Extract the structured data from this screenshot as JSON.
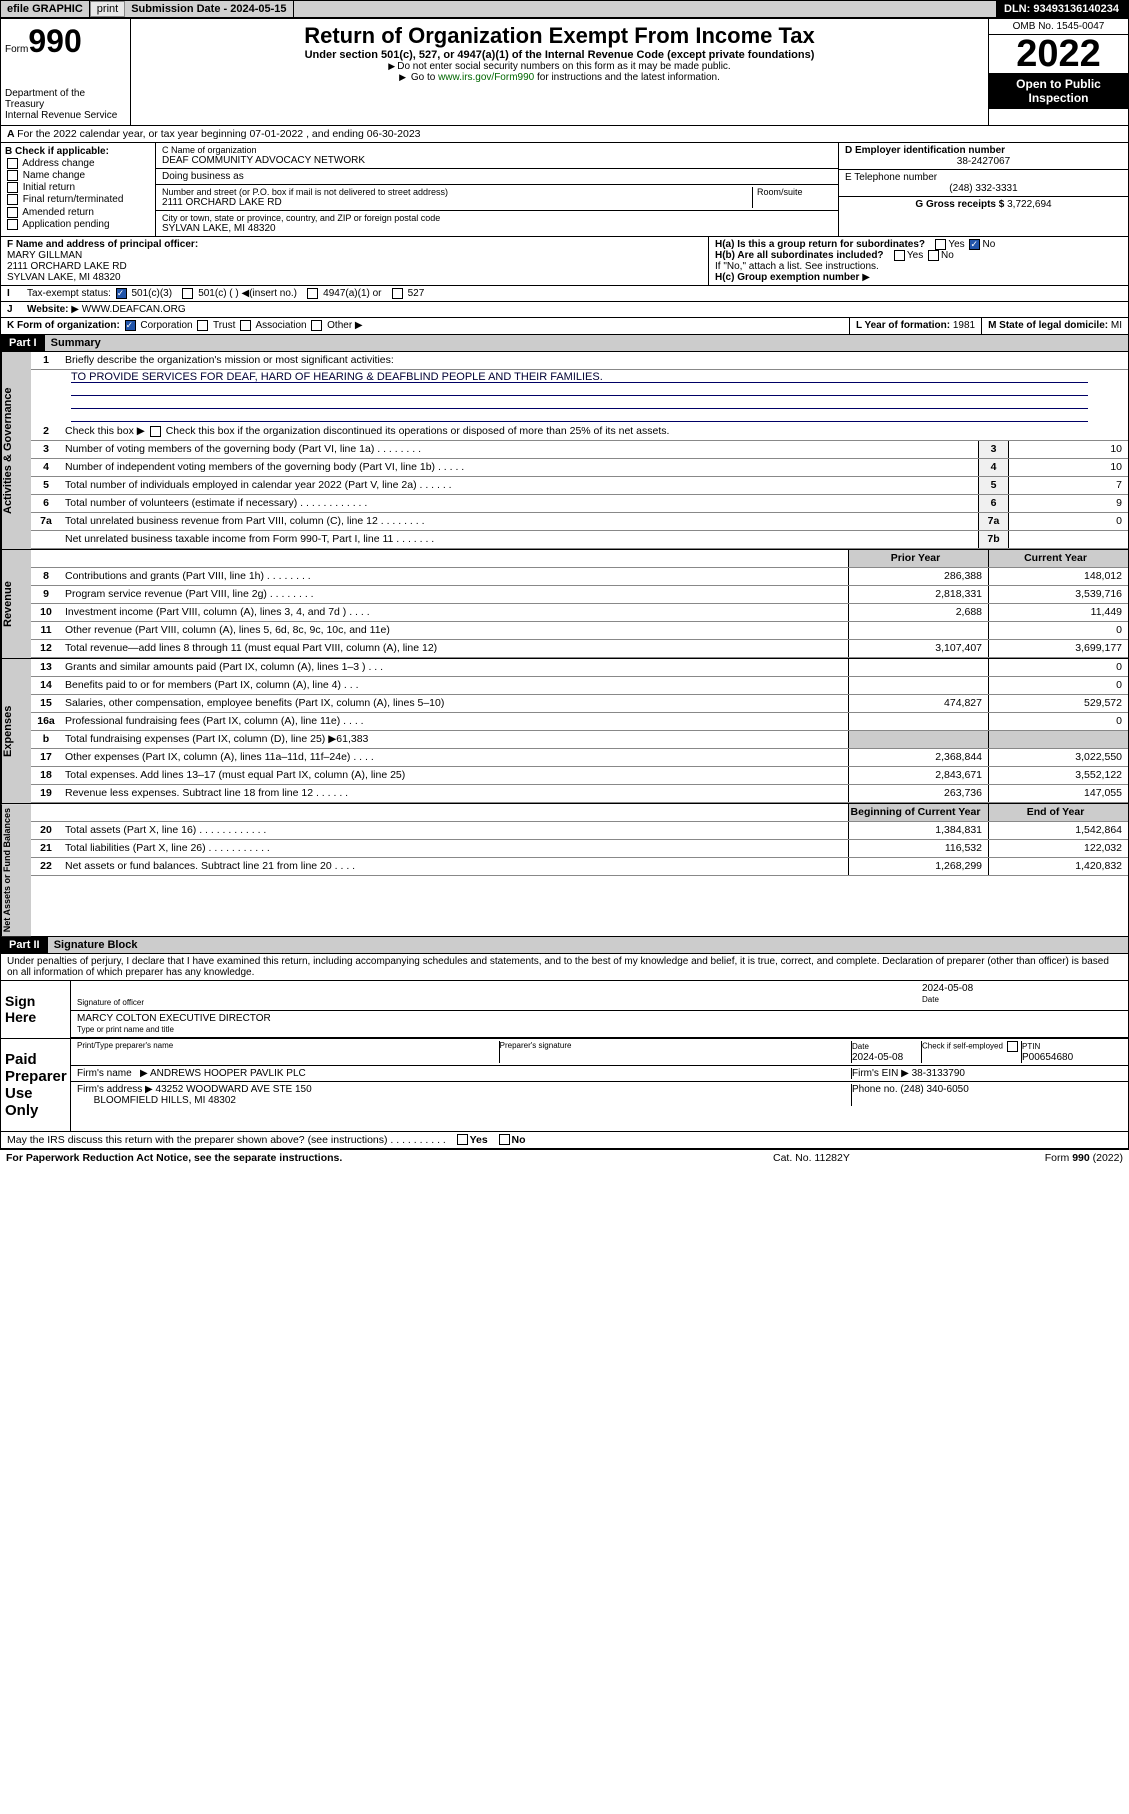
{
  "topbar": {
    "efile": "efile GRAPHIC",
    "print": "print",
    "sub_label": "Submission Date - ",
    "sub_date": "2024-05-15",
    "dln": "DLN: 93493136140234"
  },
  "header": {
    "form_label": "Form",
    "form_num": "990",
    "dept": "Department of the Treasury",
    "irs": "Internal Revenue Service",
    "title": "Return of Organization Exempt From Income Tax",
    "sub1": "Under section 501(c), 527, or 4947(a)(1) of the Internal Revenue Code (except private foundations)",
    "sub2": "Do not enter social security numbers on this form as it may be made public.",
    "sub3_pre": "Go to ",
    "sub3_link": "www.irs.gov/Form990",
    "sub3_post": " for instructions and the latest information.",
    "omb": "OMB No. 1545-0047",
    "year": "2022",
    "inspect": "Open to Public Inspection"
  },
  "periodA": "For the 2022 calendar year, or tax year beginning 07-01-2022   , and ending 06-30-2023",
  "secB": {
    "label": "B Check if applicable:",
    "opts": [
      "Address change",
      "Name change",
      "Initial return",
      "Final return/terminated",
      "Amended return",
      "Application pending"
    ],
    "c_label": "C Name of organization",
    "org": "DEAF COMMUNITY ADVOCACY NETWORK",
    "dba": "Doing business as",
    "addr_label": "Number and street (or P.O. box if mail is not delivered to street address)",
    "room": "Room/suite",
    "addr": "2111 ORCHARD LAKE RD",
    "city_label": "City or town, state or province, country, and ZIP or foreign postal code",
    "city": "SYLVAN LAKE, MI  48320",
    "d_label": "D Employer identification number",
    "ein": "38-2427067",
    "e_label": "E Telephone number",
    "phone": "(248) 332-3331",
    "g_label": "G Gross receipts $ ",
    "gross": "3,722,694"
  },
  "secF": {
    "f_label": "F Name and address of principal officer:",
    "name": "MARY GILLMAN",
    "addr1": "2111 ORCHARD LAKE RD",
    "addr2": "SYLVAN LAKE, MI  48320",
    "ha": "H(a)  Is this a group return for subordinates?",
    "hb": "H(b)  Are all subordinates included?",
    "hb_note": "If \"No,\" attach a list. See instructions.",
    "hc": "H(c)  Group exemption number",
    "yes": "Yes",
    "no": "No"
  },
  "secI": {
    "label": "Tax-exempt status:",
    "o1": "501(c)(3)",
    "o2": "501(c) (  )",
    "o2b": "(insert no.)",
    "o3": "4947(a)(1) or",
    "o4": "527"
  },
  "secJ": {
    "label": "Website:",
    "val": "WWW.DEAFCAN.ORG"
  },
  "secK": {
    "label": "K Form of organization:",
    "opts": [
      "Corporation",
      "Trust",
      "Association",
      "Other"
    ],
    "l_label": "L Year of formation: ",
    "l_val": "1981",
    "m_label": "M State of legal domicile: ",
    "m_val": "MI"
  },
  "part1": {
    "hdr": "Part I",
    "title": "Summary"
  },
  "gov": {
    "label": "Activities & Governance",
    "l1a": "Briefly describe the organization's mission or most significant activities:",
    "l1b": "TO PROVIDE SERVICES FOR DEAF, HARD OF HEARING & DEAFBLIND PEOPLE AND THEIR FAMILIES.",
    "l2": "Check this box    if the organization discontinued its operations or disposed of more than 25% of its net assets.",
    "lines": [
      {
        "n": "3",
        "t": "Number of voting members of the governing body (Part VI, line 1a)   .    .    .    .    .    .    .    .",
        "b": "3",
        "v": "10"
      },
      {
        "n": "4",
        "t": "Number of independent voting members of the governing body (Part VI, line 1b)   .    .    .    .    .",
        "b": "4",
        "v": "10"
      },
      {
        "n": "5",
        "t": "Total number of individuals employed in calendar year 2022 (Part V, line 2a)   .    .    .    .    .    .",
        "b": "5",
        "v": "7"
      },
      {
        "n": "6",
        "t": "Total number of volunteers (estimate if necessary)   .    .    .    .    .    .    .    .    .    .    .    .",
        "b": "6",
        "v": "9"
      },
      {
        "n": "7a",
        "t": "Total unrelated business revenue from Part VIII, column (C), line 12   .    .    .    .    .    .    .    .",
        "b": "7a",
        "v": "0"
      },
      {
        "n": "",
        "t": "Net unrelated business taxable income from Form 990-T, Part I, line 11   .    .    .    .    .    .    .",
        "b": "7b",
        "v": ""
      }
    ]
  },
  "rev": {
    "label": "Revenue",
    "hdr_prior": "Prior Year",
    "hdr_curr": "Current Year",
    "lines": [
      {
        "n": "8",
        "t": "Contributions and grants (Part VIII, line 1h)   .    .    .    .    .    .    .    .",
        "p": "286,388",
        "c": "148,012"
      },
      {
        "n": "9",
        "t": "Program service revenue (Part VIII, line 2g)   .    .    .    .    .    .    .    .",
        "p": "2,818,331",
        "c": "3,539,716"
      },
      {
        "n": "10",
        "t": "Investment income (Part VIII, column (A), lines 3, 4, and 7d )   .    .    .    .",
        "p": "2,688",
        "c": "11,449"
      },
      {
        "n": "11",
        "t": "Other revenue (Part VIII, column (A), lines 5, 6d, 8c, 9c, 10c, and 11e)",
        "p": "",
        "c": "0"
      },
      {
        "n": "12",
        "t": "Total revenue—add lines 8 through 11 (must equal Part VIII, column (A), line 12)",
        "p": "3,107,407",
        "c": "3,699,177"
      }
    ]
  },
  "exp": {
    "label": "Expenses",
    "lines": [
      {
        "n": "13",
        "t": "Grants and similar amounts paid (Part IX, column (A), lines 1–3 )   .    .    .",
        "p": "",
        "c": "0"
      },
      {
        "n": "14",
        "t": "Benefits paid to or for members (Part IX, column (A), line 4)   .    .    .",
        "p": "",
        "c": "0"
      },
      {
        "n": "15",
        "t": "Salaries, other compensation, employee benefits (Part IX, column (A), lines 5–10)",
        "p": "474,827",
        "c": "529,572"
      },
      {
        "n": "16a",
        "t": "Professional fundraising fees (Part IX, column (A), line 11e)   .    .    .    .",
        "p": "",
        "c": "0"
      },
      {
        "n": "b",
        "t": "Total fundraising expenses (Part IX, column (D), line 25) ▶61,383",
        "p": "—",
        "c": "—"
      },
      {
        "n": "17",
        "t": "Other expenses (Part IX, column (A), lines 11a–11d, 11f–24e)   .    .    .    .",
        "p": "2,368,844",
        "c": "3,022,550"
      },
      {
        "n": "18",
        "t": "Total expenses. Add lines 13–17 (must equal Part IX, column (A), line 25)",
        "p": "2,843,671",
        "c": "3,552,122"
      },
      {
        "n": "19",
        "t": "Revenue less expenses. Subtract line 18 from line 12   .    .    .    .    .    .",
        "p": "263,736",
        "c": "147,055"
      }
    ]
  },
  "net": {
    "label": "Net Assets or Fund Balances",
    "hdr_beg": "Beginning of Current Year",
    "hdr_end": "End of Year",
    "lines": [
      {
        "n": "20",
        "t": "Total assets (Part X, line 16)   .    .    .    .    .    .    .    .    .    .    .    .",
        "p": "1,384,831",
        "c": "1,542,864"
      },
      {
        "n": "21",
        "t": "Total liabilities (Part X, line 26)   .    .    .    .    .    .    .    .    .    .    .",
        "p": "116,532",
        "c": "122,032"
      },
      {
        "n": "22",
        "t": "Net assets or fund balances. Subtract line 21 from line 20   .    .    .    .",
        "p": "1,268,299",
        "c": "1,420,832"
      }
    ]
  },
  "part2": {
    "hdr": "Part II",
    "title": "Signature Block"
  },
  "penalty": "Under penalties of perjury, I declare that I have examined this return, including accompanying schedules and statements, and to the best of my knowledge and belief, it is true, correct, and complete. Declaration of preparer (other than officer) is based on all information of which preparer has any knowledge.",
  "sign": {
    "label": "Sign Here",
    "sig_of": "Signature of officer",
    "date": "2024-05-08",
    "date_l": "Date",
    "name": "MARCY COLTON  EXECUTIVE DIRECTOR",
    "name_l": "Type or print name and title"
  },
  "paid": {
    "label": "Paid Preparer Use Only",
    "c1": "Print/Type preparer's name",
    "c2": "Preparer's signature",
    "c3": "Date",
    "c3v": "2024-05-08",
    "c4": "Check        if self-employed",
    "c5": "PTIN",
    "c5v": "P00654680",
    "firm_l": "Firm's name",
    "firm": "ANDREWS HOOPER PAVLIK PLC",
    "ein_l": "Firm's EIN",
    "ein": "38-3133790",
    "addr_l": "Firm's address",
    "addr1": "43252 WOODWARD AVE STE 150",
    "addr2": "BLOOMFIELD HILLS, MI  48302",
    "ph_l": "Phone no. ",
    "ph": "(248) 340-6050"
  },
  "discuss": "May the IRS discuss this return with the preparer shown above? (see instructions)   .    .    .    .    .    .    .    .    .    .",
  "footer": {
    "l": "For Paperwork Reduction Act Notice, see the separate instructions.",
    "c": "Cat. No. 11282Y",
    "r": "Form 990 (2022)"
  },
  "colors": {
    "link": "#006600",
    "chk": "#2255aa"
  }
}
